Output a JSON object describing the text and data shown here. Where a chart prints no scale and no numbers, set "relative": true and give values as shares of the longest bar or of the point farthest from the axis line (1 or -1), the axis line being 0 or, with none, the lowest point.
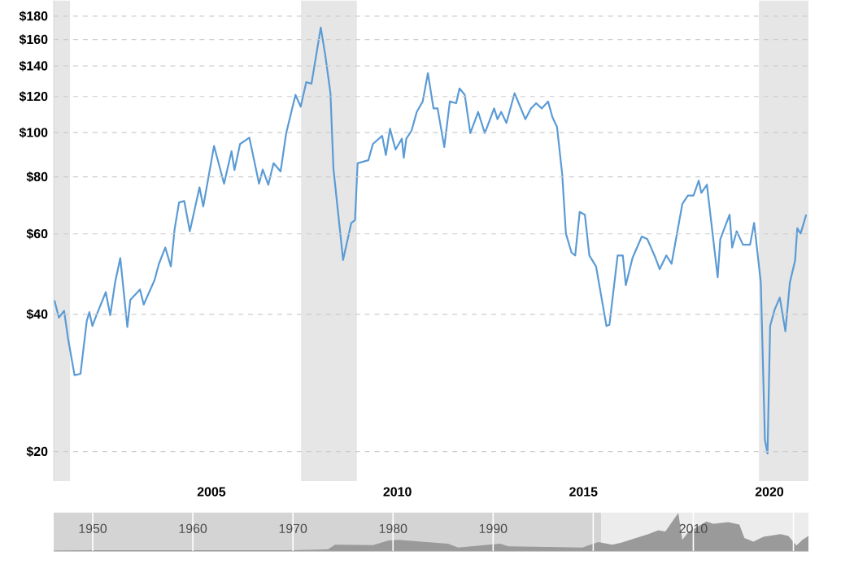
{
  "chart_data": [
    {
      "type": "line",
      "log": true,
      "grid": "y",
      "line_style": "solid",
      "xlim": [
        2000.76,
        2021.05
      ],
      "ylim": [
        17.2,
        195
      ],
      "xticks": [
        2005,
        2010,
        2015,
        2020
      ],
      "yticks": [
        {
          "value": 20,
          "label": "$20"
        },
        {
          "value": 40,
          "label": "$40"
        },
        {
          "value": 60,
          "label": "$60"
        },
        {
          "value": 80,
          "label": "$80"
        },
        {
          "value": 100,
          "label": "$100"
        },
        {
          "value": 120,
          "label": "$120"
        },
        {
          "value": 140,
          "label": "$140"
        },
        {
          "value": 160,
          "label": "$160"
        },
        {
          "value": 180,
          "label": "$180"
        }
      ],
      "bands": [
        {
          "axis": "x",
          "from": 2000.76,
          "to": 2001.2,
          "color": "#e6e6e6"
        },
        {
          "axis": "x",
          "from": 2007.41,
          "to": 2008.91,
          "color": "#e6e6e6"
        },
        {
          "axis": "x",
          "from": 2019.72,
          "to": 2021.05,
          "color": "#e6e6e6"
        }
      ],
      "series": [
        {
          "color": "#5b9bd5",
          "x": [
            2000.78,
            2000.9,
            2001.04,
            2001.14,
            2001.32,
            2001.48,
            2001.65,
            2001.72,
            2001.8,
            2001.91,
            2002.16,
            2002.28,
            2002.41,
            2002.55,
            2002.74,
            2002.82,
            2003.08,
            2003.18,
            2003.47,
            2003.59,
            2003.76,
            2003.91,
            2004.01,
            2004.13,
            2004.27,
            2004.42,
            2004.68,
            2004.78,
            2005.07,
            2005.34,
            2005.54,
            2005.62,
            2005.77,
            2006.02,
            2006.28,
            2006.38,
            2006.53,
            2006.67,
            2006.86,
            2007.01,
            2007.26,
            2007.4,
            2007.55,
            2007.69,
            2007.94,
            2008.06,
            2008.2,
            2008.28,
            2008.54,
            2008.76,
            2008.86,
            2008.93,
            2009.22,
            2009.34,
            2009.59,
            2009.69,
            2009.8,
            2009.95,
            2010.12,
            2010.17,
            2010.24,
            2010.38,
            2010.52,
            2010.68,
            2010.82,
            2010.97,
            2011.08,
            2011.26,
            2011.41,
            2011.58,
            2011.67,
            2011.81,
            2011.96,
            2012.17,
            2012.35,
            2012.6,
            2012.69,
            2012.79,
            2012.93,
            2013.15,
            2013.44,
            2013.59,
            2013.73,
            2013.88,
            2014.05,
            2014.17,
            2014.29,
            2014.43,
            2014.53,
            2014.68,
            2014.78,
            2014.9,
            2015.04,
            2015.16,
            2015.34,
            2015.62,
            2015.7,
            2015.92,
            2016.06,
            2016.14,
            2016.32,
            2016.57,
            2016.72,
            2016.94,
            2017.05,
            2017.23,
            2017.37,
            2017.66,
            2017.81,
            2017.96,
            2018.1,
            2018.17,
            2018.32,
            2018.61,
            2018.68,
            2018.93,
            2019.0,
            2019.12,
            2019.29,
            2019.48,
            2019.59,
            2019.77,
            2019.88,
            2019.95,
            2020.02,
            2020.14,
            2020.28,
            2020.43,
            2020.55,
            2020.69,
            2020.75,
            2020.84,
            2020.99
          ],
          "values": [
            42.9,
            39.3,
            40.7,
            35.6,
            29.4,
            29.6,
            38.7,
            40.4,
            37.7,
            39.8,
            44.7,
            39.8,
            46.9,
            53.1,
            37.5,
            43.0,
            45.3,
            42.0,
            47.5,
            51.6,
            56.0,
            50.9,
            61.4,
            70.3,
            70.8,
            60.8,
            75.9,
            68.9,
            93.5,
            77.3,
            91.0,
            82.8,
            94.4,
            97.5,
            77.3,
            83.0,
            76.9,
            85.7,
            82.2,
            99.7,
            121,
            114,
            129,
            128,
            170,
            148,
            122,
            83.4,
            52.6,
            63.4,
            64.3,
            85.7,
            87.0,
            94.4,
            98.4,
            89.3,
            102,
            91.8,
            97.0,
            88.1,
            97.0,
            101,
            111,
            117,
            135,
            113,
            113,
            93.0,
            117,
            116,
            125,
            121,
            99.7,
            111,
            99.7,
            113,
            107,
            111,
            105,
            122,
            107,
            113,
            116,
            113,
            117,
            108,
            103,
            81.1,
            60.1,
            54.6,
            53.8,
            67.0,
            66.1,
            53.8,
            50.9,
            37.7,
            37.9,
            53.8,
            53.8,
            46.3,
            53.1,
            59.2,
            58.4,
            53.1,
            50.2,
            53.8,
            51.6,
            69.8,
            72.8,
            72.8,
            78.5,
            73.8,
            76.9,
            48.2,
            58.4,
            66.1,
            56.0,
            60.8,
            56.8,
            56.8,
            63.4,
            46.9,
            21.2,
            19.8,
            37.7,
            40.9,
            43.5,
            36.7,
            46.9,
            52.4,
            61.7,
            60.1,
            66.1
          ]
        }
      ]
    },
    {
      "type": "area",
      "relative": true,
      "grid": "x",
      "tick_labels": "x",
      "xlim": [
        1946.1,
        2021.5
      ],
      "xticks": [
        1950,
        1960,
        1970,
        1980,
        1990,
        {
          "value": 2000,
          "label": null
        },
        2010,
        {
          "value": 2020,
          "label": null
        }
      ],
      "bands": [
        {
          "axis": "x",
          "from": 1946.1,
          "to": 2000.8,
          "color": "#d4d4d4"
        },
        {
          "axis": "x",
          "from": 2000.8,
          "to": 2021.5,
          "color": "#ececec"
        }
      ],
      "series": [
        {
          "color": "#9a9a9a",
          "x": [
            1946.1,
            1950,
            1960,
            1970,
            1973.5,
            1974.2,
            1978,
            1979.5,
            1980.5,
            1981.5,
            1985.5,
            1986.5,
            1990.7,
            1991.5,
            1998.9,
            2000.5,
            2001.9,
            2003,
            2005.5,
            2006.5,
            2007.2,
            2008.5,
            2008.9,
            2009.5,
            2011.3,
            2012,
            2013.5,
            2014.6,
            2015.1,
            2016,
            2017,
            2018.7,
            2019.5,
            2020.3,
            2020.9,
            2021.5
          ],
          "values": [
            0.02,
            0.03,
            0.03,
            0.03,
            0.05,
            0.17,
            0.16,
            0.28,
            0.3,
            0.28,
            0.2,
            0.1,
            0.2,
            0.13,
            0.1,
            0.24,
            0.17,
            0.24,
            0.45,
            0.55,
            0.52,
            1,
            0.3,
            0.5,
            0.78,
            0.72,
            0.76,
            0.7,
            0.35,
            0.25,
            0.38,
            0.45,
            0.4,
            0.15,
            0.3,
            0.4
          ]
        }
      ]
    }
  ]
}
